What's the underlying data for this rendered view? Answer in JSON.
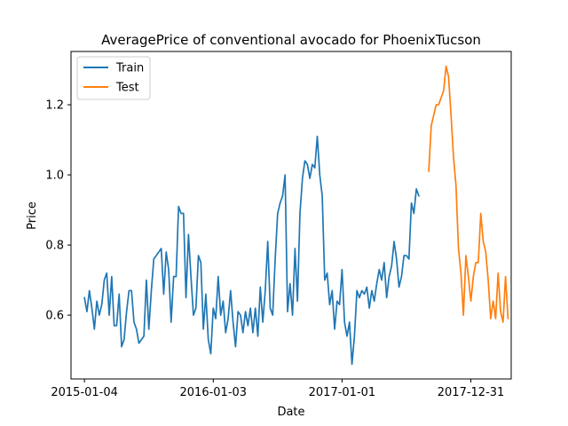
{
  "chart_data": {
    "type": "line",
    "title": "AveragePrice of conventional avocado for PhoenixTucson",
    "xlabel": "Date",
    "ylabel": "Price",
    "x_ticks": [
      "2015-01-04",
      "2016-01-03",
      "2017-01-01",
      "2017-12-31"
    ],
    "y_ticks": [
      "0.6",
      "0.8",
      "1.0",
      "1.2"
    ],
    "xlim": [
      "2014-11-27",
      "2018-04-24"
    ],
    "ylim": [
      0.418,
      1.352
    ],
    "grid": false,
    "legend_position": "top-left",
    "series": [
      {
        "name": "Train",
        "color": "#1f77b4",
        "start": "2015-01-04",
        "values": [
          0.65,
          0.61,
          0.67,
          0.62,
          0.56,
          0.64,
          0.6,
          0.63,
          0.7,
          0.72,
          0.6,
          0.71,
          0.57,
          0.57,
          0.66,
          0.51,
          0.53,
          0.61,
          0.67,
          0.67,
          0.58,
          0.56,
          0.52,
          0.53,
          0.54,
          0.7,
          0.56,
          0.67,
          0.76,
          0.77,
          0.78,
          0.79,
          0.66,
          0.78,
          0.73,
          0.58,
          0.71,
          0.71,
          0.91,
          0.89,
          0.89,
          0.65,
          0.83,
          0.71,
          0.6,
          0.62,
          0.77,
          0.75,
          0.56,
          0.66,
          0.53,
          0.49,
          0.62,
          0.59,
          0.71,
          0.6,
          0.64,
          0.55,
          0.59,
          0.67,
          0.58,
          0.51,
          0.61,
          0.6,
          0.55,
          0.61,
          0.57,
          0.62,
          0.55,
          0.62,
          0.54,
          0.68,
          0.58,
          0.67,
          0.81,
          0.62,
          0.6,
          0.76,
          0.89,
          0.92,
          0.94,
          1.0,
          0.61,
          0.69,
          0.6,
          0.79,
          0.64,
          0.89,
          0.99,
          1.04,
          1.03,
          0.99,
          1.03,
          1.02,
          1.11,
          1.0,
          0.94,
          0.7,
          0.72,
          0.63,
          0.67,
          0.56,
          0.64,
          0.63,
          0.73,
          0.58,
          0.54,
          0.58,
          0.46,
          0.54,
          0.67,
          0.65,
          0.67,
          0.66,
          0.68,
          0.62,
          0.67,
          0.64,
          0.69,
          0.73,
          0.7,
          0.75,
          0.65,
          0.71,
          0.74,
          0.81,
          0.76,
          0.68,
          0.71,
          0.77,
          0.77,
          0.76,
          0.92,
          0.89,
          0.96,
          0.94
        ]
      },
      {
        "name": "Test",
        "color": "#ff7f0e",
        "start": "2017-09-03",
        "values": [
          1.01,
          1.14,
          1.17,
          1.2,
          1.2,
          1.22,
          1.24,
          1.31,
          1.28,
          1.17,
          1.05,
          0.97,
          0.79,
          0.72,
          0.6,
          0.77,
          0.71,
          0.64,
          0.71,
          0.75,
          0.75,
          0.89,
          0.81,
          0.78,
          0.7,
          0.59,
          0.64,
          0.59,
          0.72,
          0.61,
          0.58,
          0.71,
          0.59
        ]
      }
    ]
  }
}
